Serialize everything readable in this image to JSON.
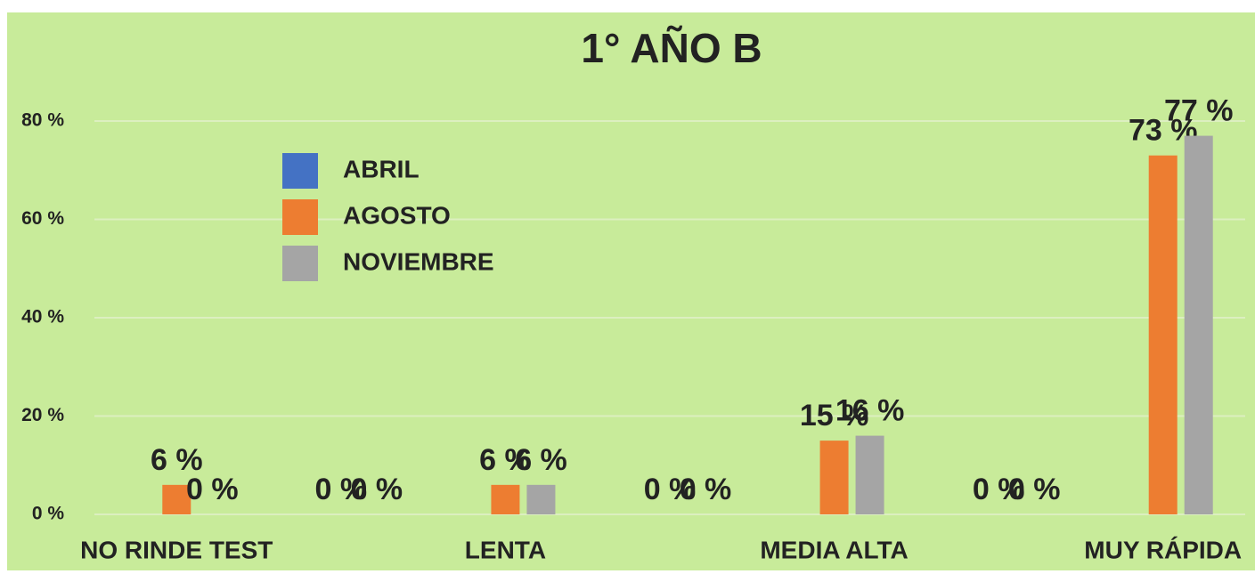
{
  "chart_data": {
    "type": "bar",
    "title": "1° AÑO B",
    "categories": [
      "NO RINDE TEST",
      null,
      "LENTA",
      null,
      "MEDIA ALTA",
      null,
      "MUY RÁPIDA"
    ],
    "series": [
      {
        "name": "ABRIL",
        "color": "#4472c4",
        "values": [
          null,
          null,
          null,
          null,
          null,
          null,
          null
        ]
      },
      {
        "name": "AGOSTO",
        "color": "#ed7d31",
        "values": [
          6,
          0,
          6,
          0,
          15,
          0,
          73
        ],
        "value_labels": [
          "6 %",
          "0 %",
          "6 %",
          "0 %",
          "15 %",
          "0 %",
          "73 %"
        ]
      },
      {
        "name": "NOVIEMBRE",
        "color": "#a5a5a5",
        "values": [
          0,
          0,
          6,
          0,
          16,
          0,
          77
        ],
        "value_labels": [
          "0 %",
          "0 %",
          "6 %",
          "0 %",
          "16 %",
          "0 %",
          "77 %"
        ]
      }
    ],
    "ylim": [
      0,
      80
    ],
    "yticks": [
      {
        "value": 0,
        "label": "0 %"
      },
      {
        "value": 20,
        "label": "20 %"
      },
      {
        "value": 40,
        "label": "40 %"
      },
      {
        "value": 60,
        "label": "60 %"
      },
      {
        "value": 80,
        "label": "80 %"
      }
    ],
    "grid": true,
    "legend": "upper left"
  }
}
